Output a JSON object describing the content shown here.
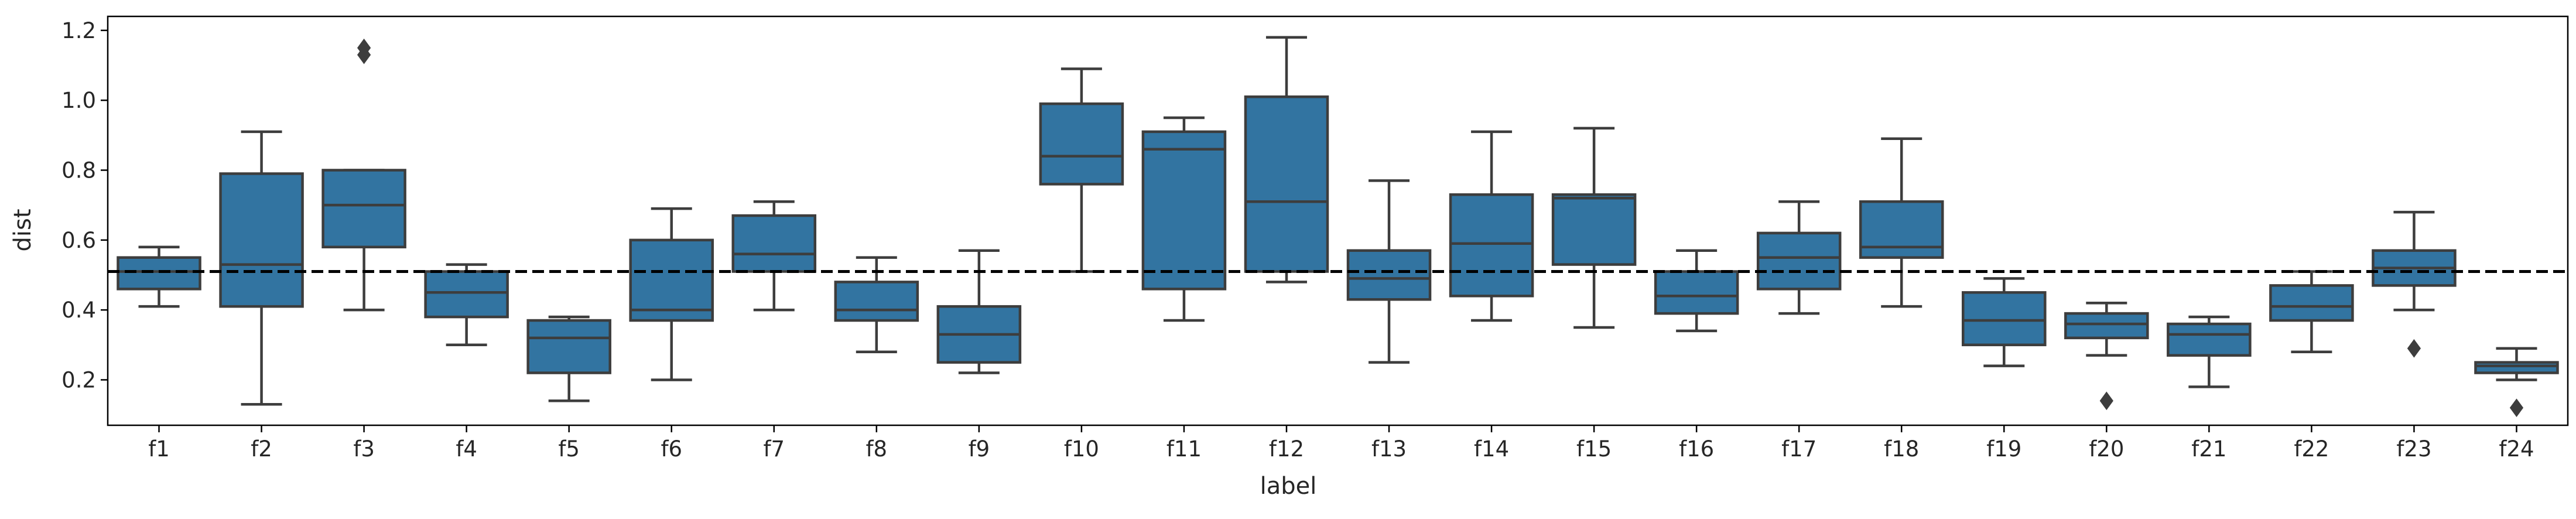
{
  "chart_data": {
    "type": "box",
    "title": "",
    "xlabel": "label",
    "ylabel": "dist",
    "ylim": [
      0.07,
      1.24
    ],
    "yticks": [
      0.2,
      0.4,
      0.6,
      0.8,
      1.0,
      1.2
    ],
    "ytick_labels": [
      "0.2",
      "0.4",
      "0.6",
      "0.8",
      "1.0",
      "1.2"
    ],
    "grid": false,
    "reference_line": {
      "y": 0.51,
      "style": "dashed",
      "color": "#000000"
    },
    "box_color": "#3274a1",
    "edge_color": "#3d3d3d",
    "categories": [
      "f1",
      "f2",
      "f3",
      "f4",
      "f5",
      "f6",
      "f7",
      "f8",
      "f9",
      "f10",
      "f11",
      "f12",
      "f13",
      "f14",
      "f15",
      "f16",
      "f17",
      "f18",
      "f19",
      "f20",
      "f21",
      "f22",
      "f23",
      "f24"
    ],
    "boxes": [
      {
        "whislo": 0.41,
        "q1": 0.46,
        "med": 0.51,
        "q3": 0.55,
        "whishi": 0.58,
        "fliers": []
      },
      {
        "whislo": 0.13,
        "q1": 0.41,
        "med": 0.53,
        "q3": 0.79,
        "whishi": 0.91,
        "fliers": []
      },
      {
        "whislo": 0.4,
        "q1": 0.58,
        "med": 0.7,
        "q3": 0.8,
        "whishi": 0.8,
        "fliers": [
          1.13,
          1.15
        ]
      },
      {
        "whislo": 0.3,
        "q1": 0.38,
        "med": 0.45,
        "q3": 0.51,
        "whishi": 0.53,
        "fliers": []
      },
      {
        "whislo": 0.14,
        "q1": 0.22,
        "med": 0.32,
        "q3": 0.37,
        "whishi": 0.38,
        "fliers": []
      },
      {
        "whislo": 0.2,
        "q1": 0.37,
        "med": 0.4,
        "q3": 0.6,
        "whishi": 0.69,
        "fliers": []
      },
      {
        "whislo": 0.4,
        "q1": 0.51,
        "med": 0.56,
        "q3": 0.67,
        "whishi": 0.71,
        "fliers": []
      },
      {
        "whislo": 0.28,
        "q1": 0.37,
        "med": 0.4,
        "q3": 0.48,
        "whishi": 0.55,
        "fliers": []
      },
      {
        "whislo": 0.22,
        "q1": 0.25,
        "med": 0.33,
        "q3": 0.41,
        "whishi": 0.57,
        "fliers": []
      },
      {
        "whislo": 0.51,
        "q1": 0.76,
        "med": 0.84,
        "q3": 0.99,
        "whishi": 1.09,
        "fliers": []
      },
      {
        "whislo": 0.37,
        "q1": 0.46,
        "med": 0.86,
        "q3": 0.91,
        "whishi": 0.95,
        "fliers": []
      },
      {
        "whislo": 0.48,
        "q1": 0.51,
        "med": 0.71,
        "q3": 1.01,
        "whishi": 1.18,
        "fliers": []
      },
      {
        "whislo": 0.25,
        "q1": 0.43,
        "med": 0.49,
        "q3": 0.57,
        "whishi": 0.77,
        "fliers": []
      },
      {
        "whislo": 0.37,
        "q1": 0.44,
        "med": 0.59,
        "q3": 0.73,
        "whishi": 0.91,
        "fliers": []
      },
      {
        "whislo": 0.35,
        "q1": 0.53,
        "med": 0.72,
        "q3": 0.73,
        "whishi": 0.92,
        "fliers": []
      },
      {
        "whislo": 0.34,
        "q1": 0.39,
        "med": 0.44,
        "q3": 0.51,
        "whishi": 0.57,
        "fliers": []
      },
      {
        "whislo": 0.39,
        "q1": 0.46,
        "med": 0.55,
        "q3": 0.62,
        "whishi": 0.71,
        "fliers": []
      },
      {
        "whislo": 0.41,
        "q1": 0.55,
        "med": 0.58,
        "q3": 0.71,
        "whishi": 0.89,
        "fliers": []
      },
      {
        "whislo": 0.24,
        "q1": 0.3,
        "med": 0.37,
        "q3": 0.45,
        "whishi": 0.49,
        "fliers": []
      },
      {
        "whislo": 0.27,
        "q1": 0.32,
        "med": 0.36,
        "q3": 0.39,
        "whishi": 0.42,
        "fliers": [
          0.14
        ]
      },
      {
        "whislo": 0.18,
        "q1": 0.27,
        "med": 0.33,
        "q3": 0.36,
        "whishi": 0.38,
        "fliers": []
      },
      {
        "whislo": 0.28,
        "q1": 0.37,
        "med": 0.41,
        "q3": 0.47,
        "whishi": 0.51,
        "fliers": []
      },
      {
        "whislo": 0.4,
        "q1": 0.47,
        "med": 0.52,
        "q3": 0.57,
        "whishi": 0.68,
        "fliers": [
          0.29
        ]
      },
      {
        "whislo": 0.2,
        "q1": 0.22,
        "med": 0.24,
        "q3": 0.25,
        "whishi": 0.29,
        "fliers": [
          0.12
        ]
      }
    ]
  }
}
